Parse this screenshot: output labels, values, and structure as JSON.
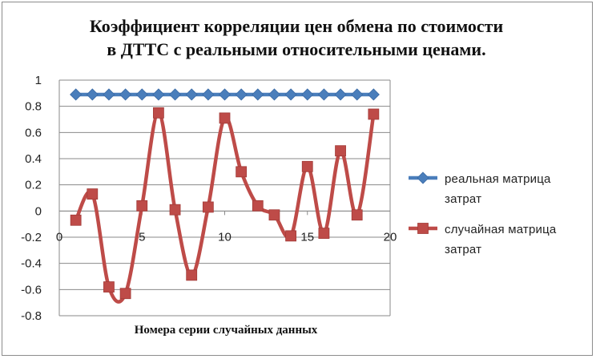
{
  "chart_data": {
    "type": "line",
    "title_lines": [
      "Коэффициент корреляции цен обмена по стоимости",
      "в ДТТС с реальными относительными ценами."
    ],
    "xlabel": "Номера серии случайных данных",
    "ylabel": "",
    "xlim": [
      0,
      20
    ],
    "ylim": [
      -0.8,
      1
    ],
    "x_ticks": [
      0,
      5,
      10,
      15,
      20
    ],
    "y_ticks": [
      -0.8,
      -0.6,
      -0.4,
      -0.2,
      0,
      0.2,
      0.4,
      0.6,
      0.8,
      1
    ],
    "y_tick_labels": [
      "-0.8",
      "-0.6",
      "-0.4",
      "-0.2",
      "0",
      "0.2",
      "0.4",
      "0.6",
      "0.8",
      "1"
    ],
    "grid": true,
    "legend_position": "right",
    "x": [
      1,
      2,
      3,
      4,
      5,
      6,
      7,
      8,
      9,
      10,
      11,
      12,
      13,
      14,
      15,
      16,
      17,
      18,
      19
    ],
    "series": [
      {
        "name_lines": [
          "реальная матрица",
          "затрат"
        ],
        "color": "#4a7ebb",
        "marker": "diamond",
        "smooth": false,
        "values": [
          0.89,
          0.89,
          0.89,
          0.89,
          0.89,
          0.89,
          0.89,
          0.89,
          0.89,
          0.89,
          0.89,
          0.89,
          0.89,
          0.89,
          0.89,
          0.89,
          0.89,
          0.89,
          0.89
        ]
      },
      {
        "name_lines": [
          "случайная матрица",
          "затрат"
        ],
        "color": "#be4b48",
        "marker": "square",
        "smooth": true,
        "values": [
          -0.07,
          0.13,
          -0.58,
          -0.63,
          0.04,
          0.75,
          0.01,
          -0.49,
          0.03,
          0.71,
          0.3,
          0.04,
          -0.03,
          -0.19,
          0.34,
          -0.17,
          0.46,
          -0.03,
          0.74
        ]
      }
    ]
  }
}
